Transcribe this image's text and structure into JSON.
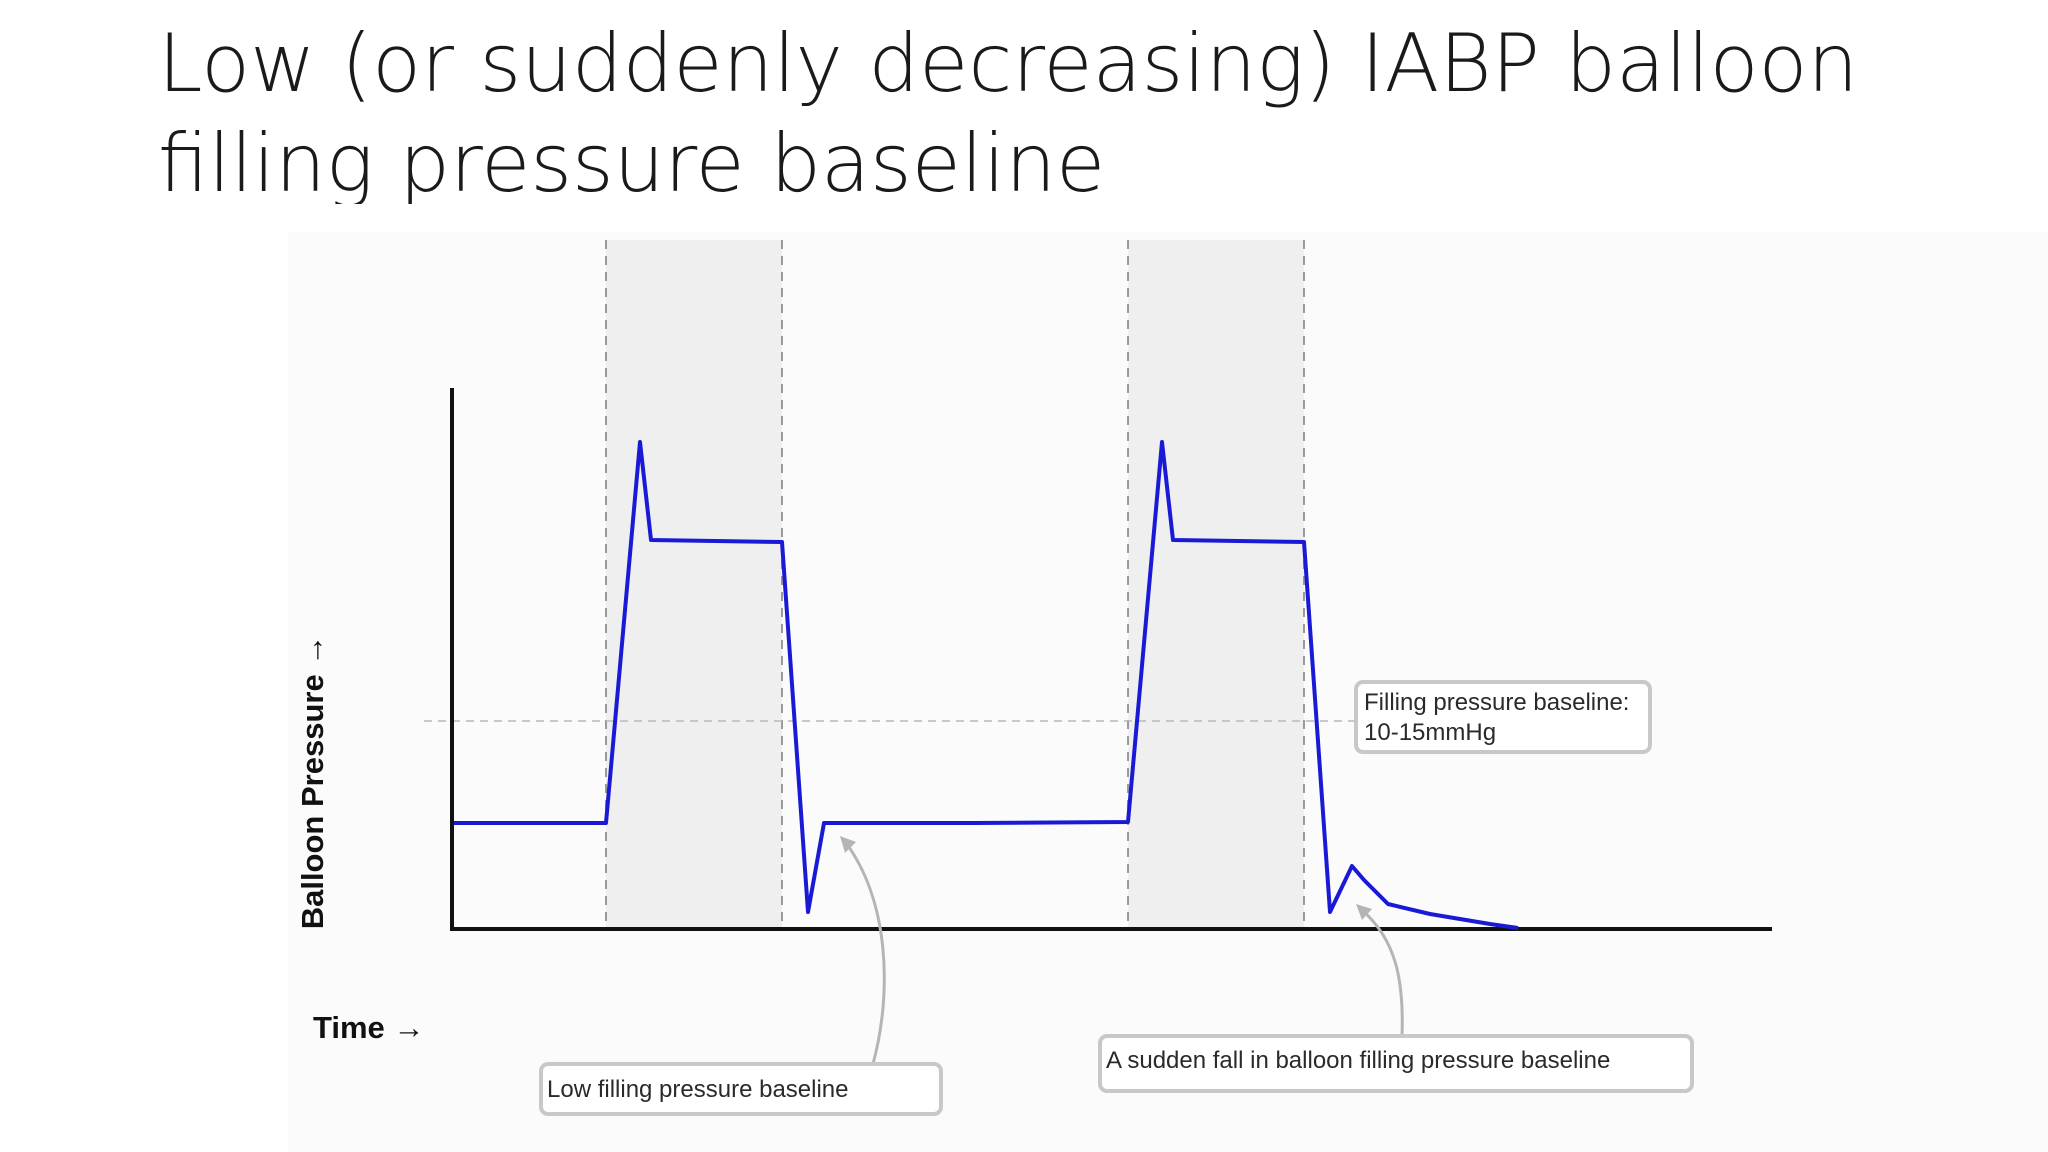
{
  "title": {
    "line1": "Low (or suddenly decreasing) IABP balloon",
    "line2": "filling pressure baseline"
  },
  "diagram": {
    "y_axis_label": "Balloon Pressure →",
    "x_axis_label": "Time →",
    "callouts": {
      "baseline_ref_line1": "Filling pressure baseline:",
      "baseline_ref_line2": "10-15mmHg",
      "low_baseline": "Low filling pressure baseline",
      "sudden_fall": "A sudden fall in balloon filling pressure baseline"
    },
    "colors": {
      "waveform": "#1a1ad6",
      "inflation_band": "#efefef",
      "axis": "#111111"
    }
  }
}
